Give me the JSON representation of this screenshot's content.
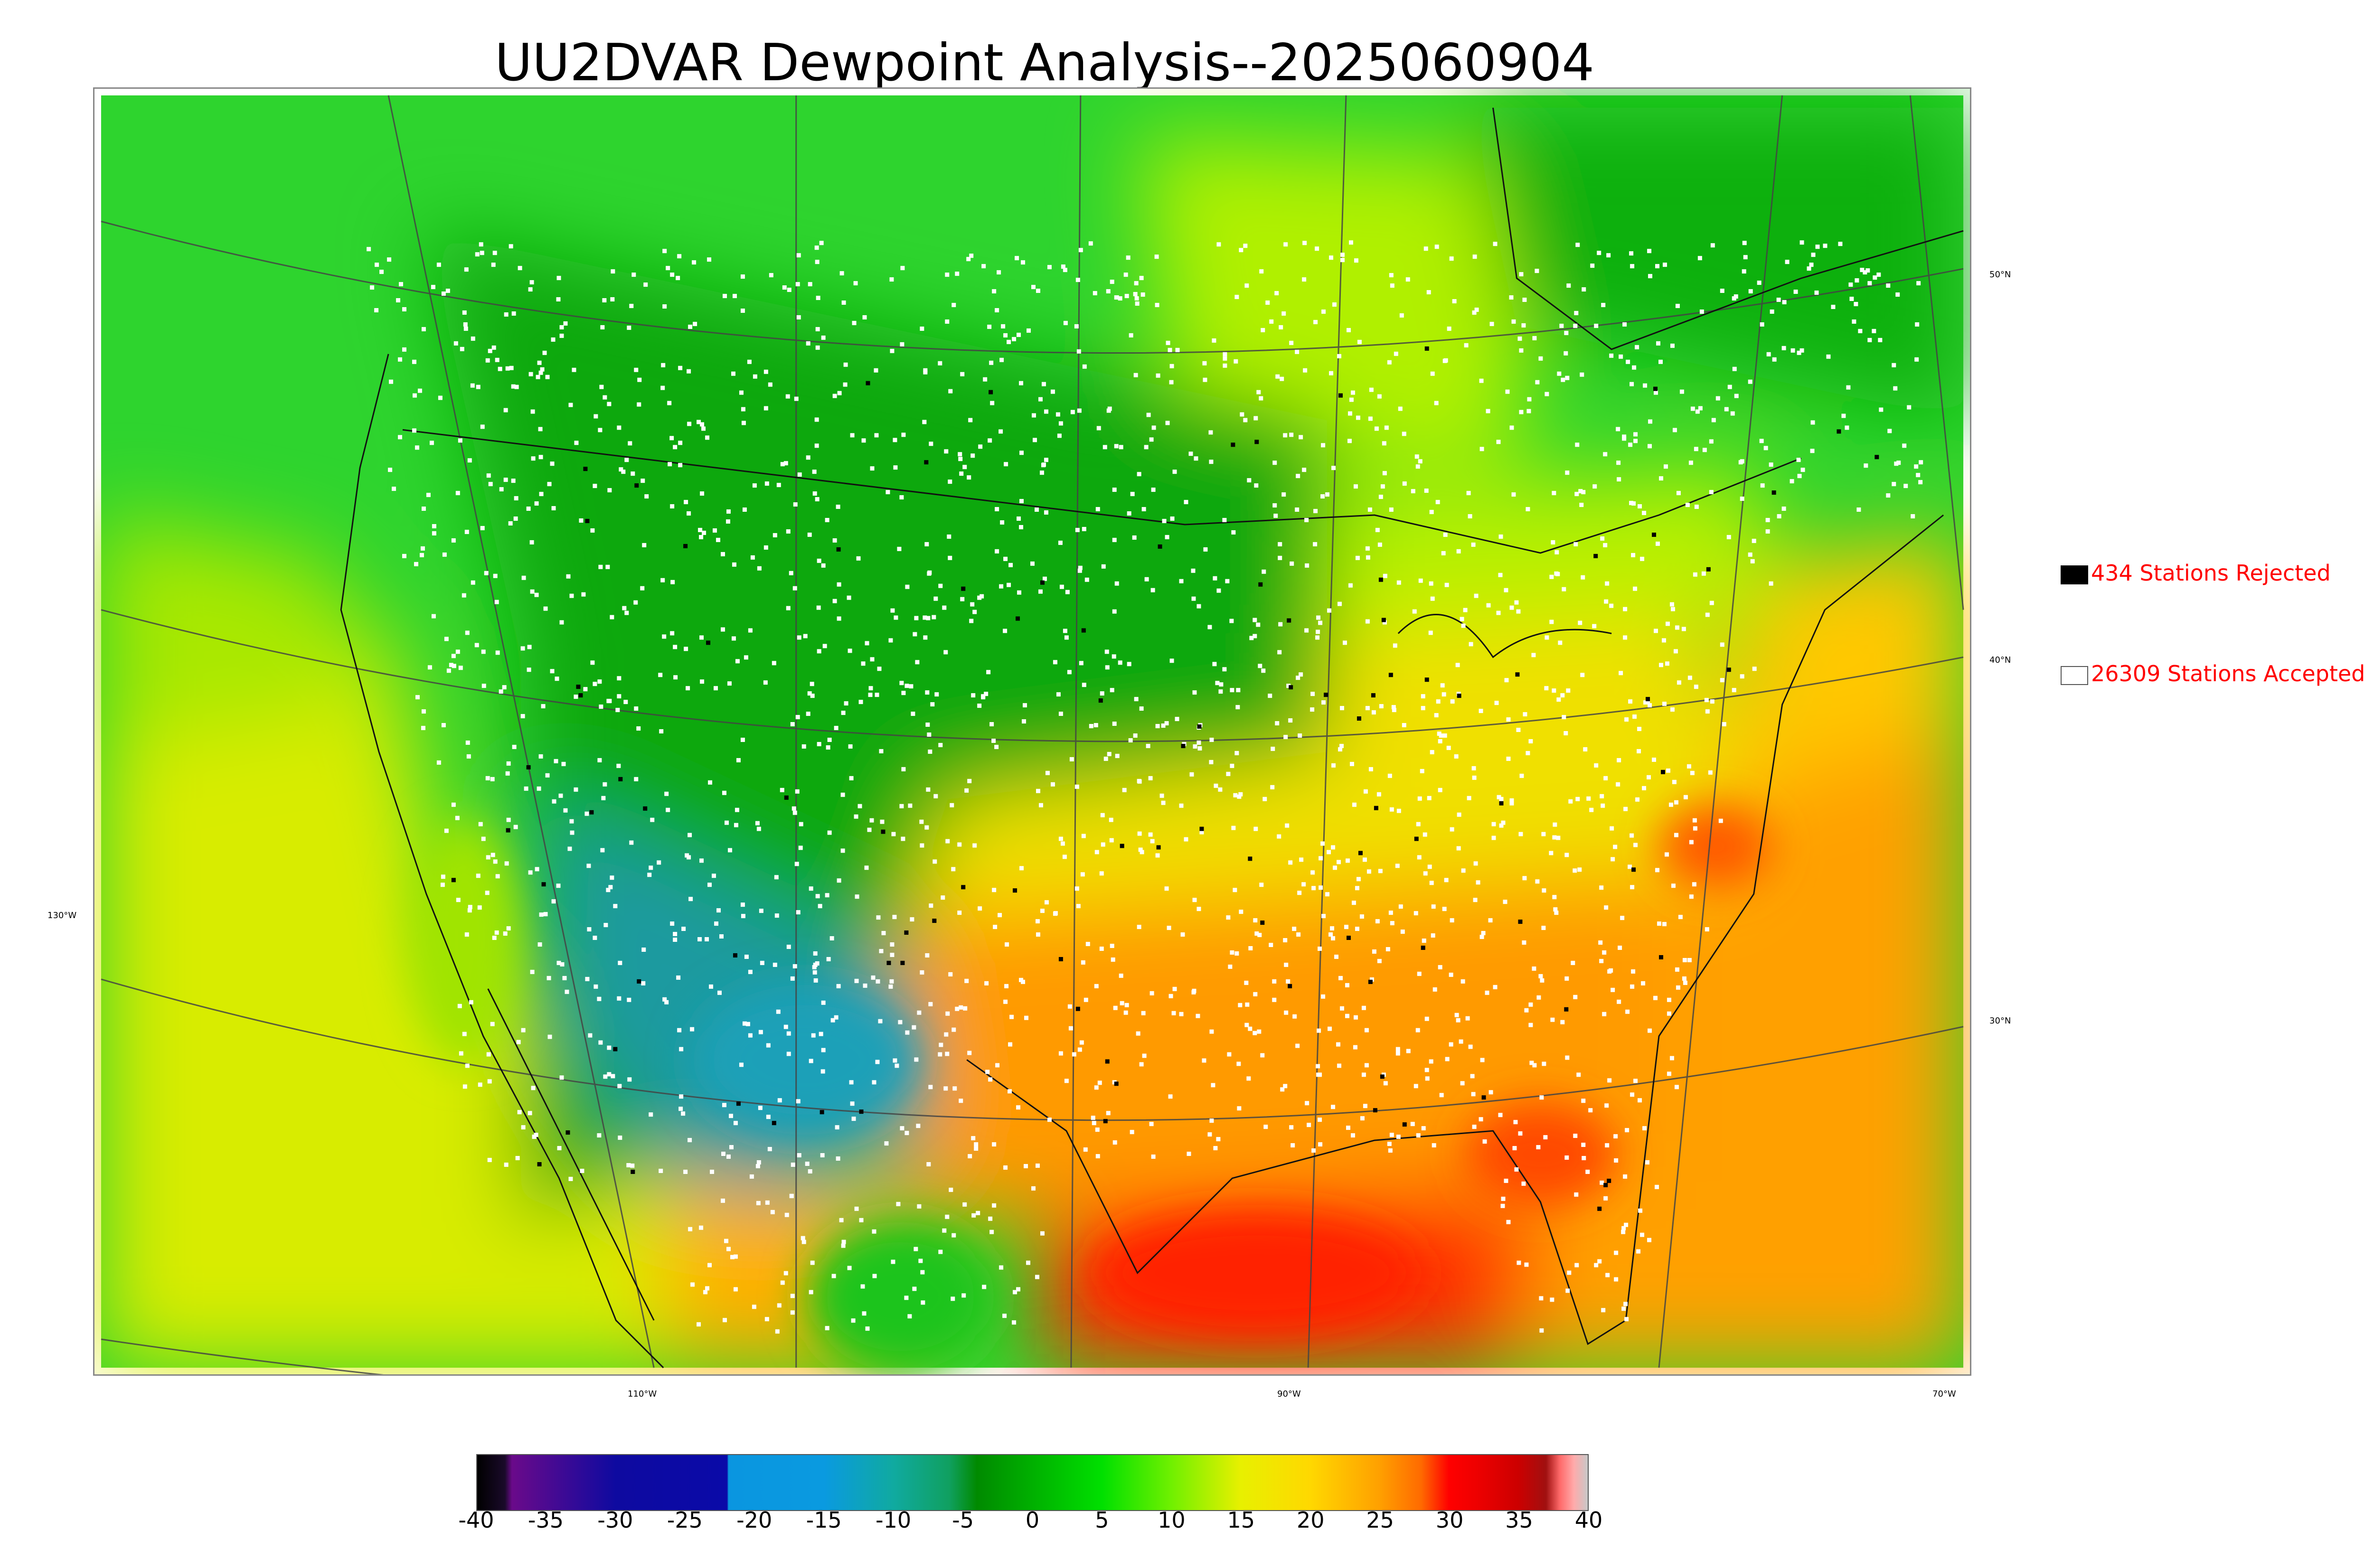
{
  "title": "UU2DVAR Dewpoint Analysis--2025060904",
  "map": {
    "lat_labels": [
      "50°N",
      "40°N",
      "30°N"
    ],
    "lon_labels": [
      "130°W",
      "110°W",
      "90°W",
      "70°W"
    ],
    "field_colors": {
      "cold_west": "#2fa3a3",
      "dry_green": "#10b010",
      "green": "#22d822",
      "lime": "#8cf000",
      "yellow": "#e6ee00",
      "orange": "#ffa500",
      "red": "#ff3a00"
    }
  },
  "legend": {
    "rejected_label": "434 Stations Rejected",
    "accepted_label": "26309 Stations Accepted",
    "rejected_color": "#000000",
    "accepted_color": "#ffffff",
    "text_color": "#ff0000"
  },
  "colorbar": {
    "ticks": [
      "-40",
      "-35",
      "-30",
      "-25",
      "-20",
      "-15",
      "-10",
      "-5",
      "0",
      "5",
      "10",
      "15",
      "20",
      "25",
      "30",
      "35",
      "40"
    ],
    "range": [
      -40,
      40
    ],
    "stops": [
      {
        "v": -40,
        "c": "#000000"
      },
      {
        "v": -38,
        "c": "#1a0a2a"
      },
      {
        "v": -37.5,
        "c": "#6a0a8a"
      },
      {
        "v": -30,
        "c": "#0e0aa0"
      },
      {
        "v": -22,
        "c": "#0a0aa8"
      },
      {
        "v": -21.9,
        "c": "#0a96e0"
      },
      {
        "v": -15,
        "c": "#0a9ae0"
      },
      {
        "v": -10,
        "c": "#10aaa0"
      },
      {
        "v": -6,
        "c": "#10a060"
      },
      {
        "v": -4,
        "c": "#008a00"
      },
      {
        "v": 0,
        "c": "#00b000"
      },
      {
        "v": 5,
        "c": "#00e000"
      },
      {
        "v": 10,
        "c": "#70f000"
      },
      {
        "v": 15,
        "c": "#e8f000"
      },
      {
        "v": 20,
        "c": "#ffd800"
      },
      {
        "v": 25,
        "c": "#ffa000"
      },
      {
        "v": 28,
        "c": "#ff6a00"
      },
      {
        "v": 30,
        "c": "#ff0000"
      },
      {
        "v": 32,
        "c": "#ee0000"
      },
      {
        "v": 35,
        "c": "#cc0000"
      },
      {
        "v": 37,
        "c": "#a01010"
      },
      {
        "v": 38,
        "c": "#ff6a6a"
      },
      {
        "v": 39,
        "c": "#ffaaaa"
      },
      {
        "v": 40,
        "c": "#c8c8c8"
      }
    ]
  }
}
